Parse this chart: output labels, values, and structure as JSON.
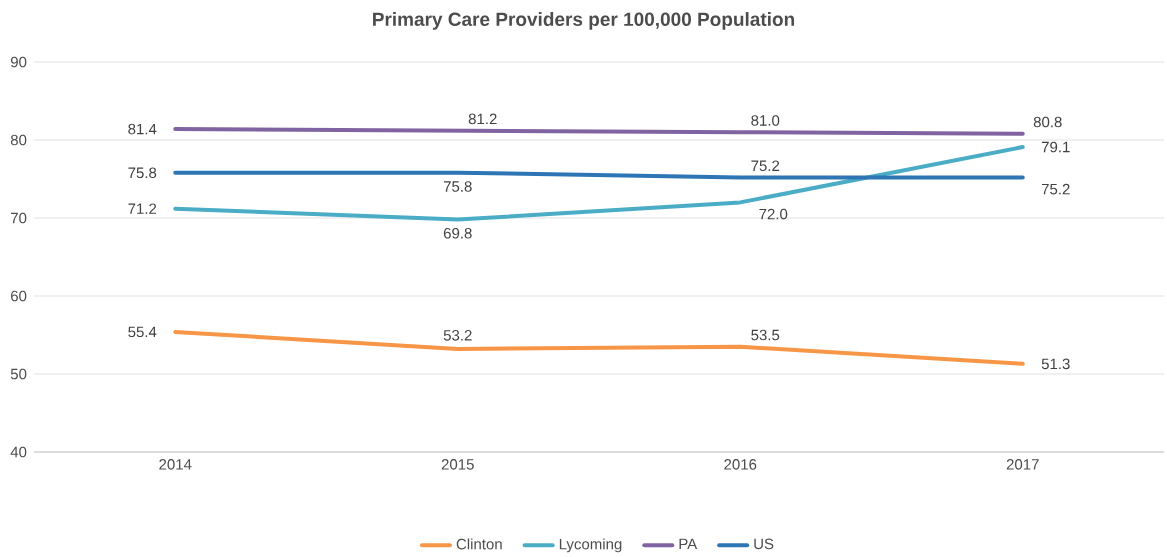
{
  "chart_data": {
    "type": "line",
    "title": "Primary Care Providers per 100,000 Population",
    "categories": [
      "2014",
      "2015",
      "2016",
      "2017"
    ],
    "series": [
      {
        "name": "Clinton",
        "color": "#f79646",
        "values": [
          55.4,
          53.2,
          53.5,
          51.3
        ],
        "value_labels": [
          "55.4",
          "53.2",
          "53.5",
          "51.3"
        ]
      },
      {
        "name": "Lycoming",
        "color": "#4bacc6",
        "values": [
          71.2,
          69.8,
          72.0,
          79.1
        ],
        "value_labels": [
          "71.2",
          "69.8",
          "72.0",
          "79.1"
        ]
      },
      {
        "name": "PA",
        "color": "#8064a2",
        "values": [
          81.4,
          81.2,
          81.0,
          80.8
        ],
        "value_labels": [
          "81.4",
          "81.2",
          "81.0",
          "80.8"
        ]
      },
      {
        "name": "US",
        "color": "#2e75b6",
        "values": [
          75.8,
          75.8,
          75.2,
          75.2
        ],
        "value_labels": [
          "75.8",
          "75.8",
          "75.2",
          "75.2"
        ]
      }
    ],
    "ylim": [
      40,
      90
    ],
    "yticks": [
      40,
      50,
      60,
      70,
      80,
      90
    ],
    "grid": "y",
    "legend": "bottom",
    "marker": "none",
    "line_style": "solid"
  }
}
